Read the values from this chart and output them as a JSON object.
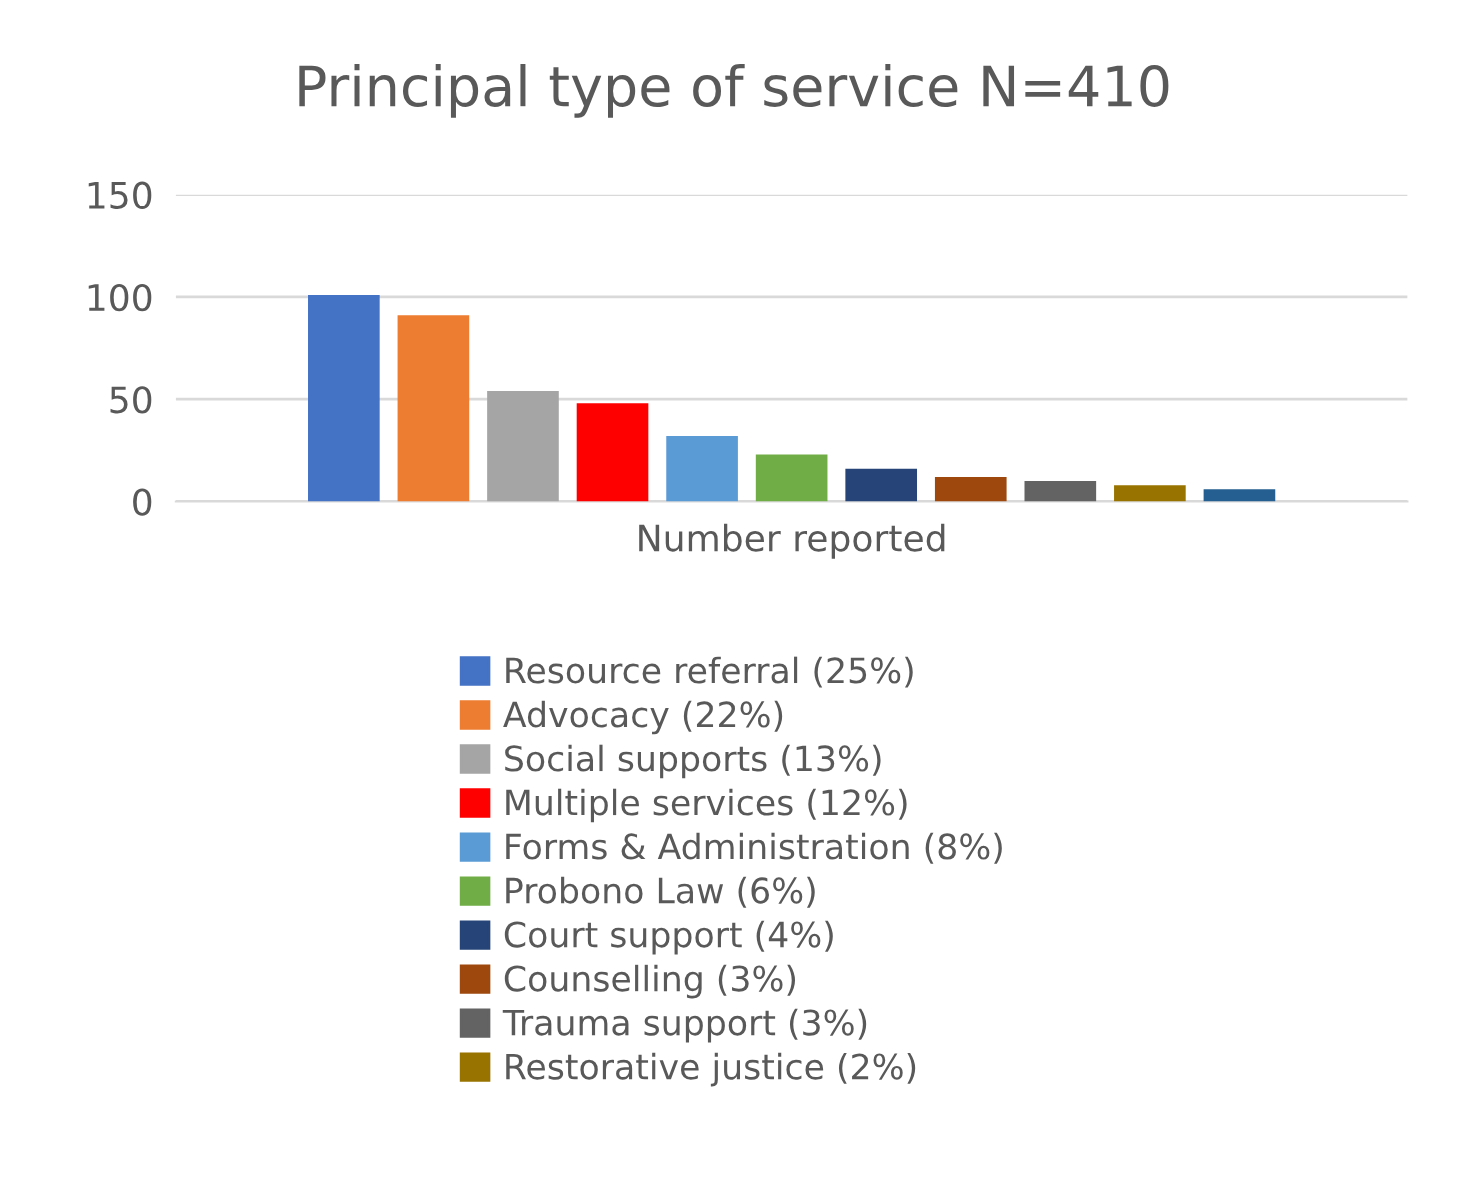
{
  "chart_data": {
    "type": "bar",
    "title": "Principal type of service N=410",
    "categories": [
      "Number reported"
    ],
    "series": [
      {
        "name": "Resource referral (25%)",
        "color": "#4472c4",
        "values": [
          101
        ]
      },
      {
        "name": "Advocacy (22%)",
        "color": "#ed7d31",
        "values": [
          91
        ]
      },
      {
        "name": "Social supports (13%)",
        "color": "#a5a5a5",
        "values": [
          54
        ]
      },
      {
        "name": "Multiple services (12%)",
        "color": "#ff0000",
        "values": [
          48
        ]
      },
      {
        "name": "Forms & Administration (8%)",
        "color": "#5b9bd5",
        "values": [
          32
        ]
      },
      {
        "name": "Probono Law (6%)",
        "color": "#70ad47",
        "values": [
          23
        ]
      },
      {
        "name": "Court support (4%)",
        "color": "#264478",
        "values": [
          16
        ]
      },
      {
        "name": "Counselling (3%)",
        "color": "#9e480e",
        "values": [
          12
        ]
      },
      {
        "name": "Trauma support (3%)",
        "color": "#636363",
        "values": [
          10
        ]
      },
      {
        "name": "Restorative justice (2%)",
        "color": "#997300",
        "values": [
          8
        ]
      },
      {
        "color": "#255e91",
        "values": [
          6
        ]
      }
    ],
    "ylim": [
      0,
      150
    ],
    "yticks": [
      0,
      50,
      100,
      150
    ],
    "grid": "y",
    "legend": "bottom"
  }
}
